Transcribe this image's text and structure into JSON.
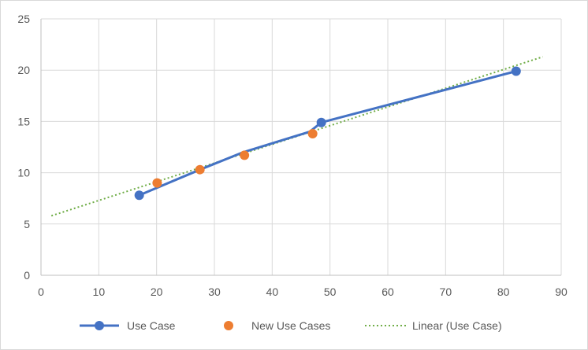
{
  "chart_data": {
    "type": "scatter",
    "title": "",
    "xlabel": "",
    "ylabel": "",
    "xlim": [
      0,
      90
    ],
    "ylim": [
      0,
      25
    ],
    "x_ticks": [
      0,
      10,
      20,
      30,
      40,
      50,
      60,
      70,
      80,
      90
    ],
    "y_ticks": [
      0,
      5,
      10,
      15,
      20,
      25
    ],
    "x_tick_labels": [
      "0",
      "10",
      "20",
      "30",
      "40",
      "50",
      "60",
      "70",
      "80",
      "90"
    ],
    "y_tick_labels": [
      "0",
      "5",
      "10",
      "15",
      "20",
      "25"
    ],
    "grid": true,
    "legend_position": "bottom",
    "series": [
      {
        "name": "Use Case",
        "style": "line-markers",
        "color": "#4472c4",
        "points": [
          [
            17,
            7.8
          ],
          [
            27.5,
            10.3
          ],
          [
            35,
            12.0
          ],
          [
            46.5,
            14.0
          ],
          [
            48.5,
            14.9
          ],
          [
            82.2,
            19.9
          ]
        ],
        "visible_marker_indices": [
          0,
          4,
          5
        ]
      },
      {
        "name": "New Use Cases",
        "style": "markers",
        "color": "#ed7d31",
        "points": [
          [
            20.1,
            9.0
          ],
          [
            27.5,
            10.3
          ],
          [
            35.2,
            11.7
          ],
          [
            47,
            13.8
          ]
        ]
      },
      {
        "name": "Linear (Use Case)",
        "style": "dotted-trendline",
        "color": "#70ad47",
        "points": [
          [
            1.8,
            5.8
          ],
          [
            86.8,
            21.3
          ]
        ]
      }
    ]
  }
}
